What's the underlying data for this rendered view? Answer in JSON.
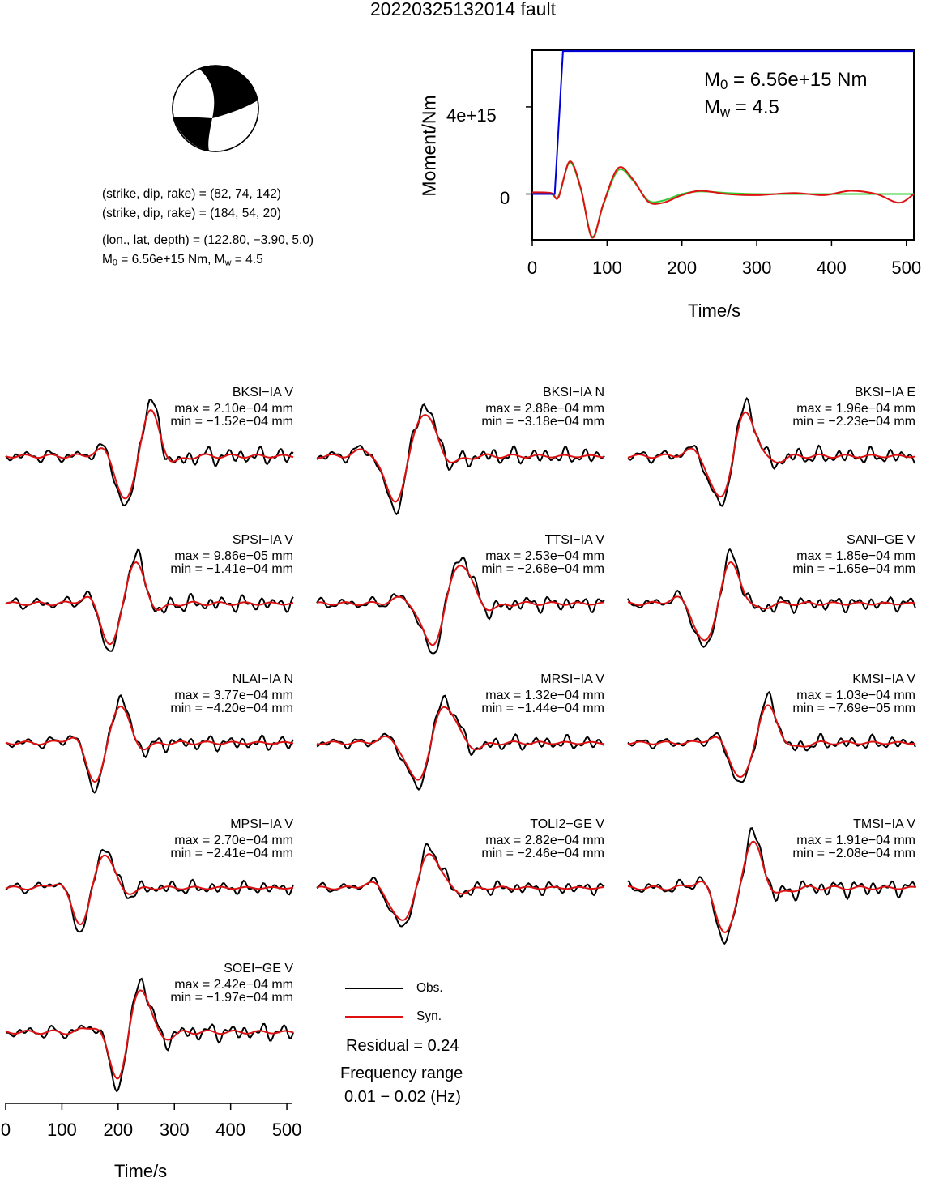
{
  "title": "20220325132014 fault",
  "mechanism": {
    "plane1": "(strike, dip, rake) = (82, 74, 142)",
    "plane2": "(strike, dip, rake) = (184, 54, 20)",
    "location": "(lon., lat, depth) = (122.80, −3.90, 5.0)",
    "m0_prefix": "M",
    "m0_sub": "0",
    "m0_mid": " = 6.56e+15 Nm, M",
    "mw_sub": "w",
    "mw_suffix": " = 4.5"
  },
  "stf_panel": {
    "m0_label": "M",
    "m0_sub": "0",
    "m0_value": " = 6.56e+15 Nm",
    "mw_label": "M",
    "mw_sub": "w",
    "mw_value": " = 4.5",
    "ylabel": "Moment/Nm",
    "xlabel": "Time/s",
    "ytick_labels": [
      "4e+15",
      "0"
    ],
    "xtick_labels": [
      "0",
      "100",
      "200",
      "300",
      "400",
      "500"
    ]
  },
  "wave_axis": {
    "xlabel": "Time/s",
    "xtick_labels": [
      "0",
      "100",
      "200",
      "300",
      "400",
      "500"
    ]
  },
  "legend": {
    "obs_label": "Obs.",
    "syn_label": "Syn.",
    "residual": "Residual = 0.24",
    "freq_title": "Frequency range",
    "freq_range": "0.01 − 0.02 (Hz)"
  },
  "colors": {
    "observed": "#000000",
    "synthetic": "#dd1111",
    "cumulative_moment": "#0000dd",
    "stf_green": "#33cc33"
  },
  "chart_data": [
    {
      "type": "line",
      "title": "",
      "xlabel": "Time/s",
      "ylabel": "Moment/Nm",
      "xlim": [
        0,
        510
      ],
      "ylim": [
        -2100000000000000.0,
        6600000000000000.0
      ],
      "yticks": [
        0,
        4000000000000000.0
      ],
      "xticks": [
        0,
        100,
        200,
        300,
        400,
        500
      ],
      "series": [
        {
          "color": "#0000dd",
          "x": [
            0,
            30,
            32,
            41,
            510
          ],
          "y": [
            0,
            0,
            1200000000000000.0,
            6560000000000000.0,
            6560000000000000.0
          ]
        },
        {
          "color": "#33cc33",
          "x": [
            0,
            25,
            35,
            50,
            65,
            80,
            95,
            115,
            135,
            155,
            175,
            200,
            225,
            260,
            300,
            350,
            400,
            450,
            510
          ],
          "y": [
            50000000000000.0,
            0.0,
            -100000000000000.0,
            1450000000000000.0,
            200000000000000.0,
            -1950000000000000.0,
            -500000000000000.0,
            1100000000000000.0,
            600000000000000.0,
            -300000000000000.0,
            -300000000000000.0,
            0.0,
            120000000000000.0,
            50000000000000.0,
            0.0,
            0.0,
            0.0,
            0.0,
            0.0
          ]
        },
        {
          "color": "#dd1111",
          "x": [
            0,
            25,
            35,
            50,
            65,
            80,
            95,
            115,
            135,
            155,
            175,
            200,
            225,
            260,
            300,
            350,
            390,
            425,
            460,
            490,
            510
          ],
          "y": [
            80000000000000.0,
            50000000000000.0,
            -150000000000000.0,
            1500000000000000.0,
            250000000000000.0,
            -2000000000000000.0,
            -450000000000000.0,
            1200000000000000.0,
            650000000000000.0,
            -350000000000000.0,
            -400000000000000.0,
            -50000000000000.0,
            150000000000000.0,
            0.0,
            -50000000000000.0,
            50000000000000.0,
            -50000000000000.0,
            150000000000000.0,
            0.0,
            -400000000000000.0,
            0.0
          ]
        }
      ]
    },
    {
      "type": "line",
      "title": "",
      "xlabel": "Time/s",
      "ylabel": "",
      "xlim": [
        0,
        510
      ],
      "xticks": [
        0,
        100,
        200,
        300,
        400,
        500
      ],
      "series_names": [
        "Obs.",
        "Syn."
      ],
      "stations": [
        {
          "name": "BKSI−IA V",
          "max": "max = 2.10e−04 mm",
          "min": "min = −1.52e−04 mm"
        },
        {
          "name": "BKSI−IA N",
          "max": "max = 2.88e−04 mm",
          "min": "min = −3.18e−04 mm"
        },
        {
          "name": "BKSI−IA E",
          "max": "max = 1.96e−04 mm",
          "min": "min = −2.23e−04 mm"
        },
        {
          "name": "SPSI−IA V",
          "max": "max = 9.86e−05 mm",
          "min": "min = −1.41e−04 mm"
        },
        {
          "name": "TTSI−IA V",
          "max": "max = 2.53e−04 mm",
          "min": "min = −2.68e−04 mm"
        },
        {
          "name": "SANI−GE V",
          "max": "max = 1.85e−04 mm",
          "min": "min = −1.65e−04 mm"
        },
        {
          "name": "NLAI−IA N",
          "max": "max = 3.77e−04 mm",
          "min": "min = −4.20e−04 mm"
        },
        {
          "name": "MRSI−IA V",
          "max": "max = 1.32e−04 mm",
          "min": "min = −1.44e−04 mm"
        },
        {
          "name": "KMSI−IA V",
          "max": "max = 1.03e−04 mm",
          "min": "min = −7.69e−05 mm"
        },
        {
          "name": "MPSI−IA V",
          "max": "max = 2.70e−04 mm",
          "min": "min = −2.41e−04 mm"
        },
        {
          "name": "TOLI2−GE V",
          "max": "max = 2.82e−04 mm",
          "min": "min = −2.46e−04 mm"
        },
        {
          "name": "TMSI−IA V",
          "max": "max = 1.91e−04 mm",
          "min": "min = −2.08e−04 mm"
        },
        {
          "name": "SOEI−GE V",
          "max": "max = 2.42e−04 mm",
          "min": "min = −1.97e−04 mm"
        }
      ]
    }
  ]
}
